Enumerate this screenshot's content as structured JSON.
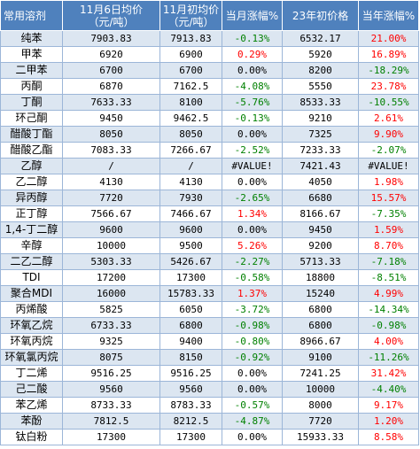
{
  "headers": {
    "name": "常用溶剂",
    "nov6_line1": "11月6日均价",
    "nov6_line2": "（元/吨）",
    "nov1_line1": "11月初均价",
    "nov1_line2": "（元/吨）",
    "month_change": "当月涨幅%",
    "year_start_price": "23年初价格",
    "year_change": "当年涨幅%"
  },
  "colors": {
    "header_bg": "#4f81bd",
    "band": "#dce6f1",
    "up": "#ff0000",
    "down": "#008000"
  },
  "rows": [
    {
      "name": "纯苯",
      "nov6": "7903.83",
      "nov1": "7913.83",
      "month": "-0.13%",
      "year_price": "6532.17",
      "year": "21.00%"
    },
    {
      "name": "甲苯",
      "nov6": "6920",
      "nov1": "6900",
      "month": "0.29%",
      "year_price": "5920",
      "year": "16.89%"
    },
    {
      "name": "二甲苯",
      "nov6": "6700",
      "nov1": "6700",
      "month": "0.00%",
      "year_price": "8200",
      "year": "-18.29%"
    },
    {
      "name": "丙酮",
      "nov6": "6870",
      "nov1": "7162.5",
      "month": "-4.08%",
      "year_price": "5550",
      "year": "23.78%"
    },
    {
      "name": "丁酮",
      "nov6": "7633.33",
      "nov1": "8100",
      "month": "-5.76%",
      "year_price": "8533.33",
      "year": "-10.55%"
    },
    {
      "name": "环己酮",
      "nov6": "9450",
      "nov1": "9462.5",
      "month": "-0.13%",
      "year_price": "9210",
      "year": "2.61%"
    },
    {
      "name": "醋酸丁酯",
      "nov6": "8050",
      "nov1": "8050",
      "month": "0.00%",
      "year_price": "7325",
      "year": "9.90%"
    },
    {
      "name": "醋酸乙酯",
      "nov6": "7083.33",
      "nov1": "7266.67",
      "month": "-2.52%",
      "year_price": "7233.33",
      "year": "-2.07%"
    },
    {
      "name": "乙醇",
      "nov6": "/",
      "nov1": "/",
      "month": "#VALUE!",
      "year_price": "7421.43",
      "year": "#VALUE!"
    },
    {
      "name": "乙二醇",
      "nov6": "4130",
      "nov1": "4130",
      "month": "0.00%",
      "year_price": "4050",
      "year": "1.98%"
    },
    {
      "name": "异丙醇",
      "nov6": "7720",
      "nov1": "7930",
      "month": "-2.65%",
      "year_price": "6680",
      "year": "15.57%"
    },
    {
      "name": "正丁醇",
      "nov6": "7566.67",
      "nov1": "7466.67",
      "month": "1.34%",
      "year_price": "8166.67",
      "year": "-7.35%"
    },
    {
      "name": "1,4-丁二醇",
      "nov6": "9600",
      "nov1": "9600",
      "month": "0.00%",
      "year_price": "9450",
      "year": "1.59%"
    },
    {
      "name": "辛醇",
      "nov6": "10000",
      "nov1": "9500",
      "month": "5.26%",
      "year_price": "9200",
      "year": "8.70%"
    },
    {
      "name": "二乙二醇",
      "nov6": "5303.33",
      "nov1": "5426.67",
      "month": "-2.27%",
      "year_price": "5713.33",
      "year": "-7.18%"
    },
    {
      "name": "TDI",
      "nov6": "17200",
      "nov1": "17300",
      "month": "-0.58%",
      "year_price": "18800",
      "year": "-8.51%"
    },
    {
      "name": "聚合MDI",
      "nov6": "16000",
      "nov1": "15783.33",
      "month": "1.37%",
      "year_price": "15240",
      "year": "4.99%"
    },
    {
      "name": "丙烯酸",
      "nov6": "5825",
      "nov1": "6050",
      "month": "-3.72%",
      "year_price": "6800",
      "year": "-14.34%"
    },
    {
      "name": "环氧乙烷",
      "nov6": "6733.33",
      "nov1": "6800",
      "month": "-0.98%",
      "year_price": "6800",
      "year": "-0.98%"
    },
    {
      "name": "环氧丙烷",
      "nov6": "9325",
      "nov1": "9400",
      "month": "-0.80%",
      "year_price": "8966.67",
      "year": "4.00%"
    },
    {
      "name": "环氧氯丙烷",
      "nov6": "8075",
      "nov1": "8150",
      "month": "-0.92%",
      "year_price": "9100",
      "year": "-11.26%"
    },
    {
      "name": "丁二烯",
      "nov6": "9516.25",
      "nov1": "9516.25",
      "month": "0.00%",
      "year_price": "7241.25",
      "year": "31.42%"
    },
    {
      "name": "己二酸",
      "nov6": "9560",
      "nov1": "9560",
      "month": "0.00%",
      "year_price": "10000",
      "year": "-4.40%"
    },
    {
      "name": "苯乙烯",
      "nov6": "8733.33",
      "nov1": "8783.33",
      "month": "-0.57%",
      "year_price": "8000",
      "year": "9.17%"
    },
    {
      "name": "苯酚",
      "nov6": "7812.5",
      "nov1": "8212.5",
      "month": "-4.87%",
      "year_price": "7720",
      "year": "1.20%"
    },
    {
      "name": "钛白粉",
      "nov6": "17300",
      "nov1": "17300",
      "month": "0.00%",
      "year_price": "15933.33",
      "year": "8.58%"
    }
  ]
}
